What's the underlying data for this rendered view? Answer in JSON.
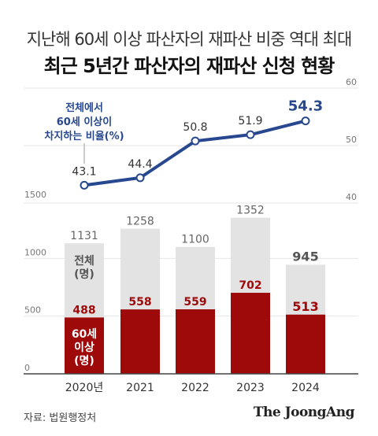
{
  "header": {
    "subtitle": "지난해 60세 이상 파산자의 재파산 비중 역대 최대",
    "title": "최근 5년간 파산자의 재파산 신청 현황"
  },
  "footer": {
    "source": "자료: 법원행정처",
    "brand": "The JoongAng"
  },
  "colors": {
    "line": "#27488f",
    "total_bar": "#e3e3e3",
    "senior_bar": "#9e0a0a",
    "total_bar_highlight": "#ececec"
  },
  "chart_data": {
    "type": "bar+line",
    "categories": [
      "2020년",
      "2021",
      "2022",
      "2023",
      "2024"
    ],
    "left_axis": {
      "ticks": [
        "0",
        "500",
        "1000",
        "1500"
      ],
      "ylim": [
        0,
        1500
      ]
    },
    "right_axis": {
      "ticks": [
        "40",
        "50",
        "60"
      ],
      "ylim": [
        40,
        60
      ]
    },
    "bars_total": {
      "label": "전체\n(명)",
      "values": [
        1131,
        1258,
        1100,
        1352,
        945
      ],
      "labels": [
        "1131",
        "1258",
        "1100",
        "1352",
        "945"
      ]
    },
    "bars_senior": {
      "label": "60세\n이상\n(명)",
      "values": [
        488,
        558,
        559,
        702,
        513
      ],
      "labels": [
        "488",
        "558",
        "559",
        "702",
        "513"
      ]
    },
    "line_share": {
      "label": "전체에서\n60세 이상이\n차지하는 비율(%)",
      "values": [
        43.1,
        44.4,
        50.8,
        51.9,
        54.3
      ],
      "labels": [
        "43.1",
        "44.4",
        "50.8",
        "51.9",
        "54.3"
      ]
    }
  }
}
